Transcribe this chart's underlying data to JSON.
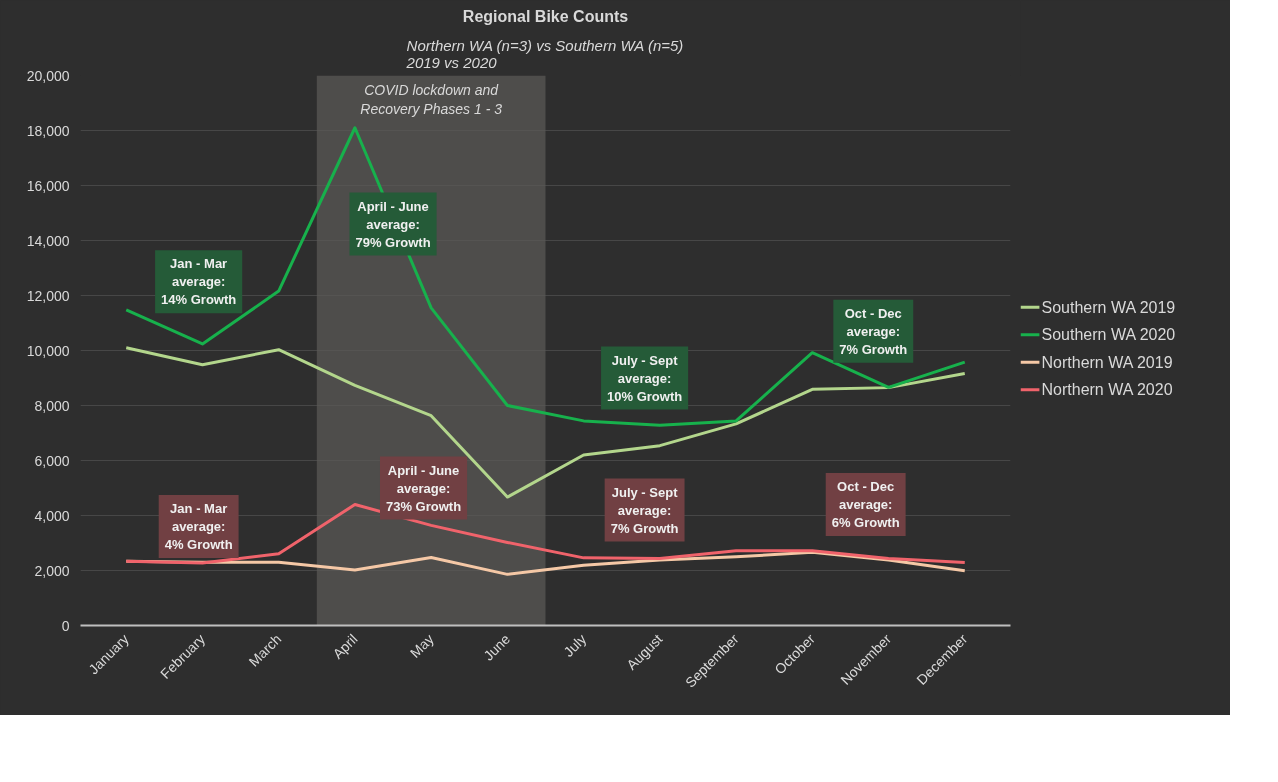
{
  "chart_data": {
    "type": "line",
    "title": "Regional Bike Counts",
    "subtitle": "Northern WA (n=3) vs Southern WA (n=5)\n2019 vs 2020",
    "categories": [
      "January",
      "February",
      "March",
      "April",
      "May",
      "June",
      "July",
      "August",
      "September",
      "October",
      "November",
      "December"
    ],
    "series": [
      {
        "name": "Southern WA 2019",
        "color": "#b3d68c",
        "values": [
          10100,
          9480,
          10030,
          8730,
          7630,
          4670,
          6200,
          6540,
          7330,
          8590,
          8650,
          9160
        ]
      },
      {
        "name": "Southern WA 2020",
        "color": "#17b14c",
        "values": [
          11480,
          10240,
          12160,
          18100,
          11550,
          8000,
          7440,
          7280,
          7440,
          9920,
          8660,
          9580
        ]
      },
      {
        "name": "Northern WA 2019",
        "color": "#f5c8a6",
        "values": [
          2340,
          2300,
          2300,
          2020,
          2470,
          1860,
          2190,
          2380,
          2500,
          2660,
          2380,
          1990
        ]
      },
      {
        "name": "Northern WA 2020",
        "color": "#f0636b",
        "values": [
          2340,
          2270,
          2610,
          4400,
          3640,
          3020,
          2460,
          2440,
          2720,
          2720,
          2440,
          2290
        ]
      }
    ],
    "ylim": [
      0,
      20000
    ],
    "yticks": [
      {
        "value": 0,
        "label": "0"
      },
      {
        "value": 2000,
        "label": "2,000"
      },
      {
        "value": 4000,
        "label": "4,000"
      },
      {
        "value": 6000,
        "label": "6,000"
      },
      {
        "value": 8000,
        "label": "8,000"
      },
      {
        "value": 10000,
        "label": "10,000"
      },
      {
        "value": 12000,
        "label": "12,000"
      },
      {
        "value": 14000,
        "label": "14,000"
      },
      {
        "value": 16000,
        "label": "16,000"
      },
      {
        "value": 18000,
        "label": "18,000"
      },
      {
        "value": 20000,
        "label": "20,000"
      }
    ],
    "bands": [
      {
        "axis": "x",
        "from": "April",
        "to": "June",
        "label": "COVID lockdown and\nRecovery Phases 1 - 3",
        "color": "#5a5856"
      }
    ],
    "annotations": [
      "Jan - Mar\naverage:\n14% Growth",
      "April - June\naverage:\n79% Growth",
      "July - Sept\naverage:\n10% Growth",
      "Oct - Dec\naverage:\n7% Growth",
      "Jan - Mar\naverage:\n4% Growth",
      "April - June\naverage:\n73% Growth",
      "July - Sept\naverage:\n7% Growth",
      "Oct - Dec\naverage:\n6% Growth"
    ],
    "grid": "y",
    "legend": "right",
    "marker": "none",
    "line_style": "solid"
  }
}
